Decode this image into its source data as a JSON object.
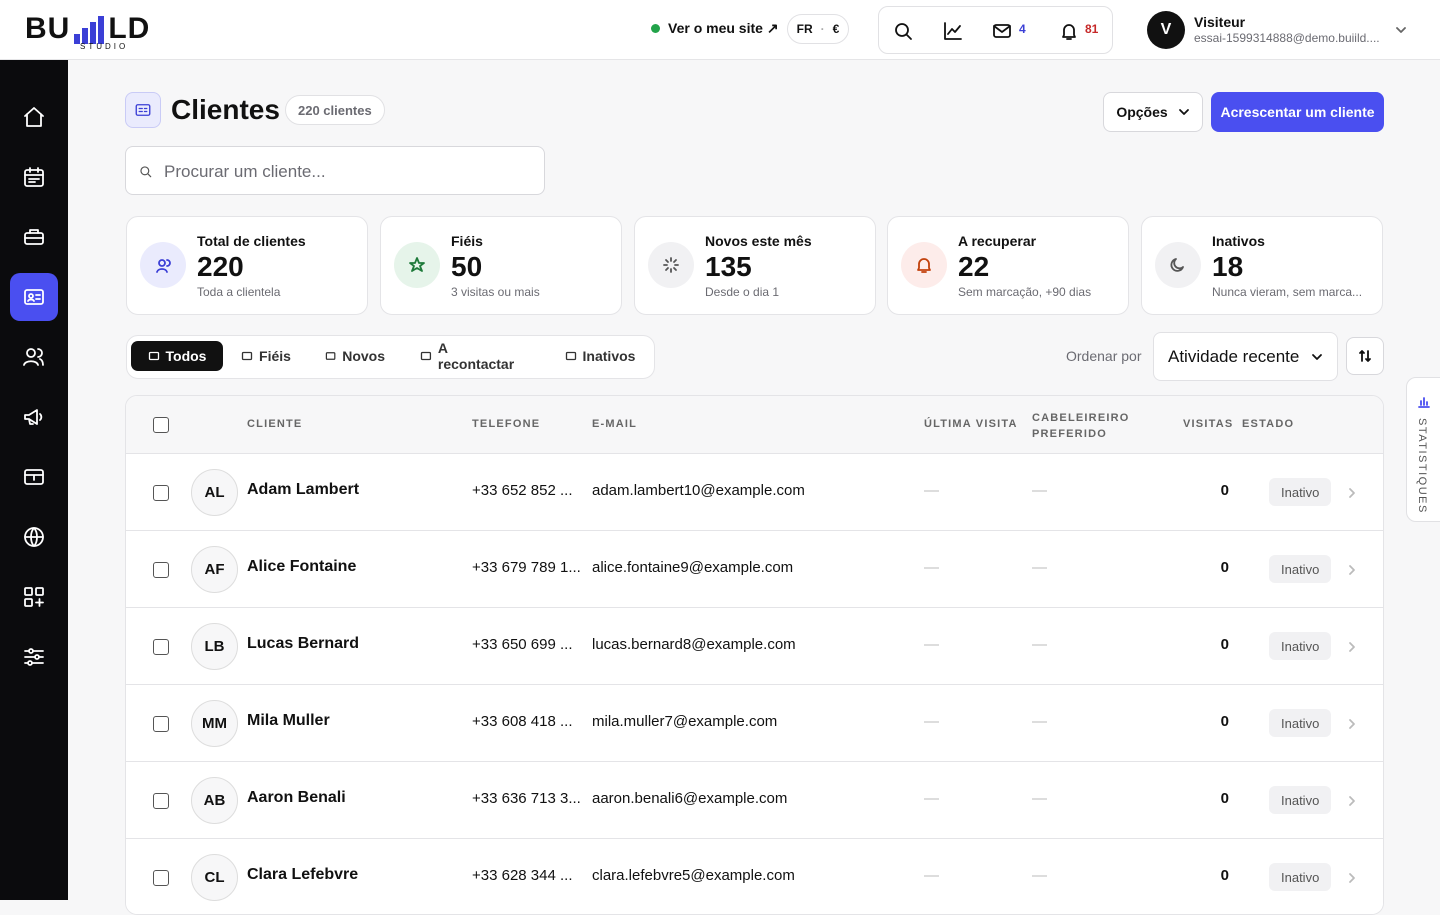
{
  "header": {
    "logo_left": "BU",
    "logo_right": "LD",
    "logo_sub": "STUDIO",
    "site_link": "Ver o meu site ↗",
    "lang": "FR",
    "currency": "€",
    "mail_count": "4",
    "notif_count": "81",
    "user_initial": "V",
    "user_name": "Visiteur",
    "user_email": "essai-1599314888@demo.buiild...."
  },
  "page": {
    "title": "Clientes",
    "count_badge": "220 clientes",
    "options": "Opções",
    "add_button": "Acrescentar um cliente",
    "search_placeholder": "Procurar um cliente..."
  },
  "stats": [
    {
      "label": "Total de clientes",
      "value": 220,
      "note": "Toda a clientela"
    },
    {
      "label": "Fiéis",
      "value": 50,
      "note": "3 visitas ou mais"
    },
    {
      "label": "Novos este mês",
      "value": 135,
      "note": "Desde o dia 1"
    },
    {
      "label": "A recuperar",
      "value": 22,
      "note": "Sem marcação, +90 dias"
    },
    {
      "label": "Inativos",
      "value": 18,
      "note": "Nunca vieram, sem marca..."
    }
  ],
  "filters": [
    "Todos",
    "Fiéis",
    "Novos",
    "A recontactar",
    "Inativos"
  ],
  "sort": {
    "label": "Ordenar por",
    "value": "Atividade recente"
  },
  "table": {
    "columns": [
      "CLIENTE",
      "TELEFONE",
      "E-MAIL",
      "ÚLTIMA VISITA",
      "CABELEIREIRO PREFERIDO",
      "VISITAS",
      "ESTADO"
    ],
    "rows": [
      [
        "AL",
        "Adam Lambert",
        "+33 652 852 ...",
        "adam.lambert10@example.com",
        "—",
        "—",
        0,
        "Inativo"
      ],
      [
        "AF",
        "Alice Fontaine",
        "+33 679 789 1...",
        "alice.fontaine9@example.com",
        "—",
        "—",
        0,
        "Inativo"
      ],
      [
        "LB",
        "Lucas Bernard",
        "+33 650 699 ...",
        "lucas.bernard8@example.com",
        "—",
        "—",
        0,
        "Inativo"
      ],
      [
        "MM",
        "Mila Muller",
        "+33 608 418 ...",
        "mila.muller7@example.com",
        "—",
        "—",
        0,
        "Inativo"
      ],
      [
        "AB",
        "Aaron Benali",
        "+33 636 713 3...",
        "aaron.benali6@example.com",
        "—",
        "—",
        0,
        "Inativo"
      ],
      [
        "CL",
        "Clara Lefebvre",
        "+33 628 344 ...",
        "clara.lefebvre5@example.com",
        "—",
        "—",
        0,
        "Inativo"
      ]
    ]
  },
  "side_tab": "STATISTIQUES"
}
